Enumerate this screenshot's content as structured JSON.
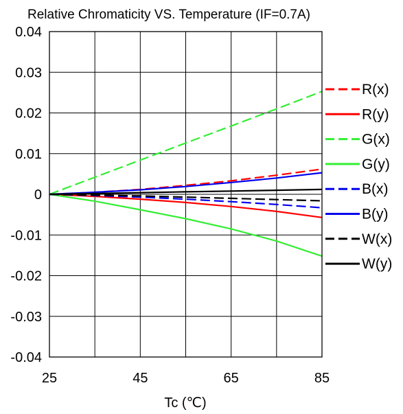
{
  "chart_data": {
    "type": "line",
    "title": "Relative Chromaticity VS. Temperature (IF=0.7A)",
    "xlabel": "Tc (℃)",
    "ylabel": "",
    "xlim": [
      25,
      85
    ],
    "ylim": [
      -0.04,
      0.04
    ],
    "x_ticks": [
      "25",
      "45",
      "65",
      "85"
    ],
    "y_ticks": [
      "0.04",
      "0.03",
      "0.02",
      "0.01",
      "0",
      "-0.01",
      "-0.02",
      "-0.03",
      "-0.04"
    ],
    "grid": true,
    "legend_position": "right",
    "x": [
      25,
      35,
      45,
      55,
      65,
      75,
      85
    ],
    "series": [
      {
        "name": "R(x)",
        "color": "#ff0000",
        "dash": "dashed",
        "values": [
          0,
          0.0005,
          0.0012,
          0.0022,
          0.0033,
          0.0047,
          0.0062
        ]
      },
      {
        "name": "R(y)",
        "color": "#ff0000",
        "dash": "solid",
        "values": [
          0,
          -0.0005,
          -0.0012,
          -0.002,
          -0.003,
          -0.0042,
          -0.0057
        ]
      },
      {
        "name": "G(x)",
        "color": "#33ee33",
        "dash": "dashed",
        "values": [
          0,
          0.0042,
          0.0084,
          0.0126,
          0.0168,
          0.021,
          0.0253
        ]
      },
      {
        "name": "G(y)",
        "color": "#33ee33",
        "dash": "solid",
        "values": [
          0,
          -0.0017,
          -0.0038,
          -0.006,
          -0.0085,
          -0.0115,
          -0.0152
        ]
      },
      {
        "name": "B(x)",
        "color": "#0000ee",
        "dash": "dashed",
        "values": [
          0,
          -0.0003,
          -0.0007,
          -0.0012,
          -0.0018,
          -0.0025,
          -0.0033
        ]
      },
      {
        "name": "B(y)",
        "color": "#0000ee",
        "dash": "solid",
        "values": [
          0,
          0.0005,
          0.0011,
          0.0019,
          0.0029,
          0.004,
          0.0053
        ]
      },
      {
        "name": "W(x)",
        "color": "#000000",
        "dash": "dashed",
        "values": [
          0,
          -0.0002,
          -0.0004,
          -0.0007,
          -0.001,
          -0.0013,
          -0.0016
        ]
      },
      {
        "name": "W(y)",
        "color": "#000000",
        "dash": "solid",
        "values": [
          0,
          0.0002,
          0.0004,
          0.0006,
          0.0008,
          0.001,
          0.0012
        ]
      }
    ]
  }
}
